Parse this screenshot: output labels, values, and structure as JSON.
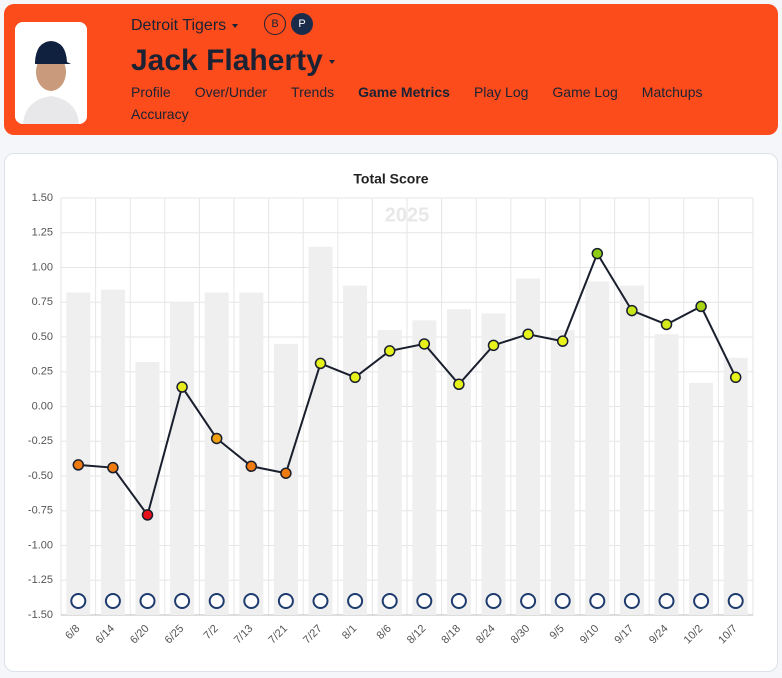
{
  "header": {
    "team": "Detroit Tigers",
    "badges": [
      "B",
      "P"
    ],
    "player": "Jack Flaherty",
    "nav": [
      "Profile",
      "Over/Under",
      "Trends",
      "Game Metrics",
      "Play Log",
      "Game Log",
      "Matchups",
      "Accuracy"
    ],
    "nav_active": 3
  },
  "chart_data": {
    "type": "line",
    "title": "Total Score",
    "watermark": "2025",
    "categories": [
      "6/8",
      "6/14",
      "6/20",
      "6/25",
      "7/2",
      "7/13",
      "7/21",
      "7/27",
      "8/1",
      "8/6",
      "8/12",
      "8/18",
      "8/24",
      "8/30",
      "9/5",
      "9/10",
      "9/17",
      "9/24",
      "10/2",
      "10/7"
    ],
    "series": [
      {
        "type": "bar",
        "color": "#efefef",
        "values": [
          0.82,
          0.84,
          0.32,
          0.75,
          0.82,
          0.82,
          0.45,
          1.15,
          0.87,
          0.55,
          0.62,
          0.7,
          0.67,
          0.92,
          0.55,
          0.9,
          0.87,
          0.52,
          0.17,
          0.35
        ]
      },
      {
        "type": "line",
        "color": "#1a1f2e",
        "values": [
          -0.42,
          -0.44,
          -0.78,
          0.14,
          -0.23,
          -0.43,
          -0.48,
          0.31,
          0.21,
          0.4,
          0.45,
          0.16,
          0.44,
          0.52,
          0.47,
          1.1,
          0.69,
          0.59,
          0.72,
          0.21
        ],
        "point_colors": [
          "#f07b10",
          "#f07b10",
          "#e8101a",
          "#e6ec1a",
          "#f0a010",
          "#f07b10",
          "#f07b10",
          "#e6f21a",
          "#e6f21a",
          "#e6f21a",
          "#e6f21a",
          "#e6f21a",
          "#e6f21a",
          "#e6f21a",
          "#e6f21a",
          "#8fcc14",
          "#c8e61a",
          "#d4ea1a",
          "#a8d414",
          "#e6f21a"
        ]
      }
    ],
    "ylim": [
      -1.5,
      1.5
    ],
    "yticks": [
      {
        "value": 1.5,
        "label": "1.50"
      },
      1.25,
      {
        "value": 1,
        "label": "1.00"
      },
      0.75,
      {
        "value": 0.5,
        "label": "0.50"
      },
      0.25,
      {
        "value": 0,
        "label": "0.00"
      },
      -0.25,
      {
        "value": -0.5,
        "label": "-0.50"
      },
      -0.75,
      {
        "value": -1,
        "label": "-1.00"
      },
      -1.25,
      {
        "value": -1.5,
        "label": "-1.50"
      }
    ],
    "grid": true
  }
}
